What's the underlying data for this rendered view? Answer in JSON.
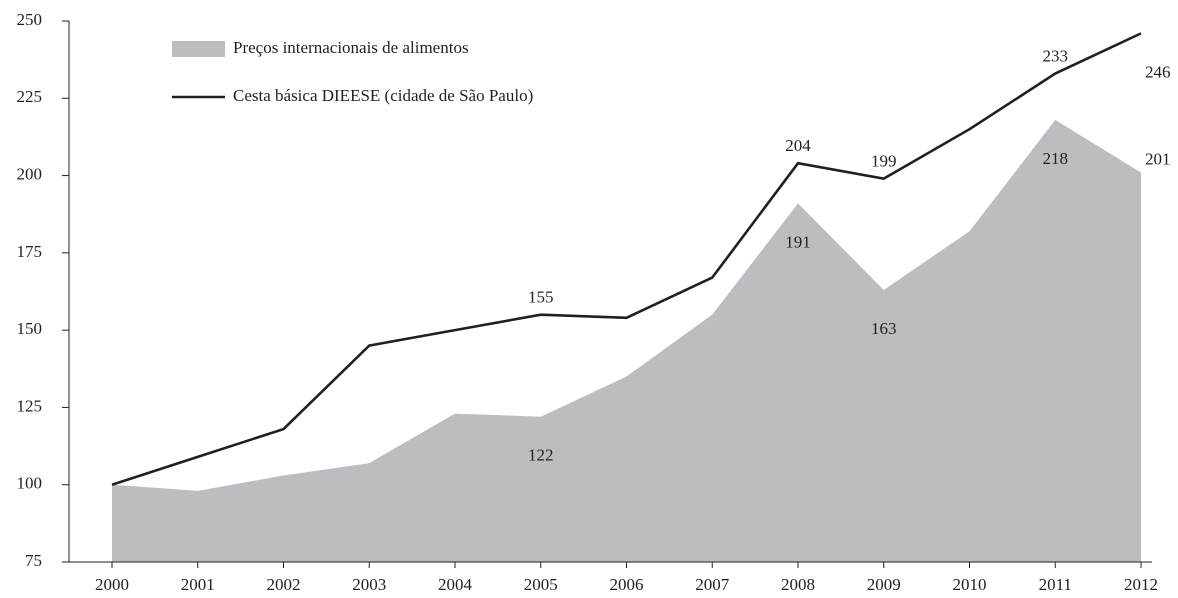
{
  "chart_data": {
    "type": "area_line",
    "categories": [
      "2000",
      "2001",
      "2002",
      "2003",
      "2004",
      "2005",
      "2006",
      "2007",
      "2008",
      "2009",
      "2010",
      "2011",
      "2012"
    ],
    "series": [
      {
        "name": "Preços internacionais de alimentos",
        "color": "#bcbdc0",
        "kind": "area",
        "values": [
          100,
          98,
          103,
          107,
          123,
          122,
          135,
          155,
          191,
          163,
          182,
          218,
          201
        ],
        "value_labels": [
          null,
          null,
          null,
          null,
          null,
          "122",
          null,
          null,
          "191",
          "163",
          null,
          "218",
          "201"
        ]
      },
      {
        "name": "Cesta básica DIEESE (cidade de São Paulo)",
        "color": "#231f20",
        "kind": "line",
        "values": [
          100,
          109,
          118,
          145,
          150,
          155,
          154,
          167,
          204,
          199,
          215,
          233,
          246
        ],
        "value_labels": [
          null,
          null,
          null,
          null,
          null,
          "155",
          null,
          null,
          "204",
          "199",
          null,
          "233",
          "246"
        ]
      }
    ],
    "ylim": [
      75,
      250
    ],
    "yticks": [
      75,
      100,
      125,
      150,
      175,
      200,
      225,
      250
    ]
  }
}
